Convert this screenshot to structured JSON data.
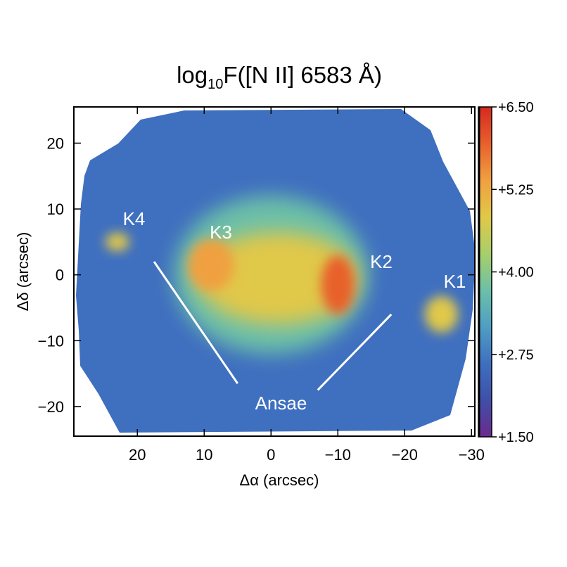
{
  "chart_data": {
    "type": "heatmap",
    "title": {
      "prefix": "log",
      "subscript": "10",
      "suffix": "F([N II] 6583 Å)"
    },
    "xlabel": "Δα (arcsec)",
    "ylabel": "Δδ (arcsec)",
    "xlim": [
      29.5,
      -30.5
    ],
    "ylim": [
      -24.5,
      25.5
    ],
    "x_axis_reversed": true,
    "x_ticks": [
      20,
      10,
      0,
      -10,
      -20,
      -30
    ],
    "x_tick_labels": [
      "20",
      "10",
      "0",
      "−10",
      "−20",
      "−30"
    ],
    "y_ticks": [
      20,
      10,
      0,
      -10,
      -20
    ],
    "y_tick_labels": [
      "20",
      "10",
      "0",
      "−10",
      "−20"
    ],
    "colorbar": {
      "min": 1.5,
      "max": 6.5,
      "ticks": [
        6.5,
        5.25,
        4.0,
        2.75,
        1.5
      ],
      "tick_labels": [
        "+6.50",
        "+5.25",
        "+4.00",
        "+2.75",
        "+1.50"
      ],
      "colors": [
        "#6b2a8f",
        "#3f4fa8",
        "#3f6fbf",
        "#4f9ec4",
        "#6cc0a8",
        "#a8cf6a",
        "#e0c848",
        "#f0a040",
        "#e8602c",
        "#d42a20"
      ]
    },
    "annotations": [
      {
        "label": "K1",
        "x": -27.5,
        "y": -1.0
      },
      {
        "label": "K2",
        "x": -16.5,
        "y": 2.0
      },
      {
        "label": "K3",
        "x": 7.5,
        "y": 6.5
      },
      {
        "label": "K4",
        "x": 20.5,
        "y": 8.5
      },
      {
        "label": "Ansae",
        "x": -1.5,
        "y": -19.5
      }
    ],
    "pointer_lines": [
      {
        "from": [
          17.5,
          2.0
        ],
        "to": [
          5.0,
          -16.5
        ]
      },
      {
        "from": [
          -7.0,
          -17.5
        ],
        "to": [
          -18.0,
          -6.0
        ]
      }
    ],
    "emission_features": [
      {
        "name": "halo",
        "x": -1.0,
        "y": 0.5,
        "rx": 29.0,
        "ry": 24.5,
        "value": 2.6
      },
      {
        "name": "shell",
        "x": 0.0,
        "y": 0.0,
        "rx": 14.5,
        "ry": 12.0,
        "value": 3.9
      },
      {
        "name": "core",
        "x": -1.0,
        "y": -0.5,
        "rx": 12.0,
        "ry": 7.0,
        "value": 4.6
      },
      {
        "name": "east_rim",
        "x": 9.0,
        "y": 1.5,
        "rx": 3.5,
        "ry": 4.0,
        "value": 5.6
      },
      {
        "name": "west_rim",
        "x": -10.0,
        "y": -1.5,
        "rx": 2.5,
        "ry": 4.5,
        "value": 5.8
      },
      {
        "name": "K1",
        "x": -25.5,
        "y": -6.0,
        "rx": 2.5,
        "ry": 2.8,
        "value": 5.0
      },
      {
        "name": "K4",
        "x": 23.0,
        "y": 5.0,
        "rx": 1.8,
        "ry": 1.4,
        "value": 4.9
      }
    ]
  }
}
